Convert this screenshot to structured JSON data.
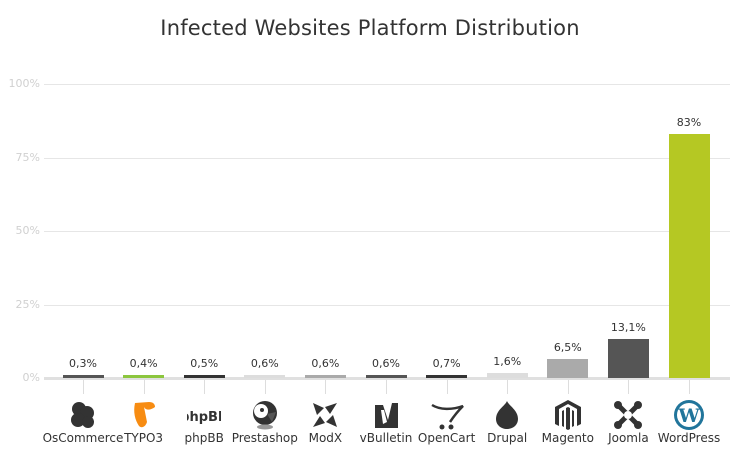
{
  "chart_data": {
    "type": "bar",
    "title": "Infected Websites Platform Distribution",
    "xlabel": "",
    "ylabel": "",
    "ylim": [
      0,
      100
    ],
    "yticks": [
      "0%",
      "25%",
      "50%",
      "75%",
      "100%"
    ],
    "grid": true,
    "legend": "none",
    "categories": [
      "OsCommerce",
      "TYPO3",
      "phpBB",
      "Prestashop",
      "ModX",
      "vBulletin",
      "OpenCart",
      "Drupal",
      "Magento",
      "Joomla",
      "WordPress"
    ],
    "values": [
      0.3,
      0.4,
      0.5,
      0.6,
      0.6,
      0.6,
      0.7,
      1.6,
      6.5,
      13.1,
      83
    ],
    "value_labels": [
      "0,3%",
      "0,4%",
      "0,5%",
      "0,6%",
      "0,6%",
      "0,6%",
      "0,7%",
      "1,6%",
      "6,5%",
      "13,1%",
      "83%"
    ],
    "colors": [
      "#555555",
      "#8cc63e",
      "#333333",
      "#dddddd",
      "#aaaaaa",
      "#555555",
      "#333333",
      "#dddddd",
      "#aaaaaa",
      "#555555",
      "#b5c823"
    ],
    "icons": [
      "oscommerce-icon",
      "typo3-icon",
      "phpbb-icon",
      "prestashop-icon",
      "modx-icon",
      "vbulletin-icon",
      "opencart-icon",
      "drupal-icon",
      "magento-icon",
      "joomla-icon",
      "wordpress-icon"
    ]
  }
}
